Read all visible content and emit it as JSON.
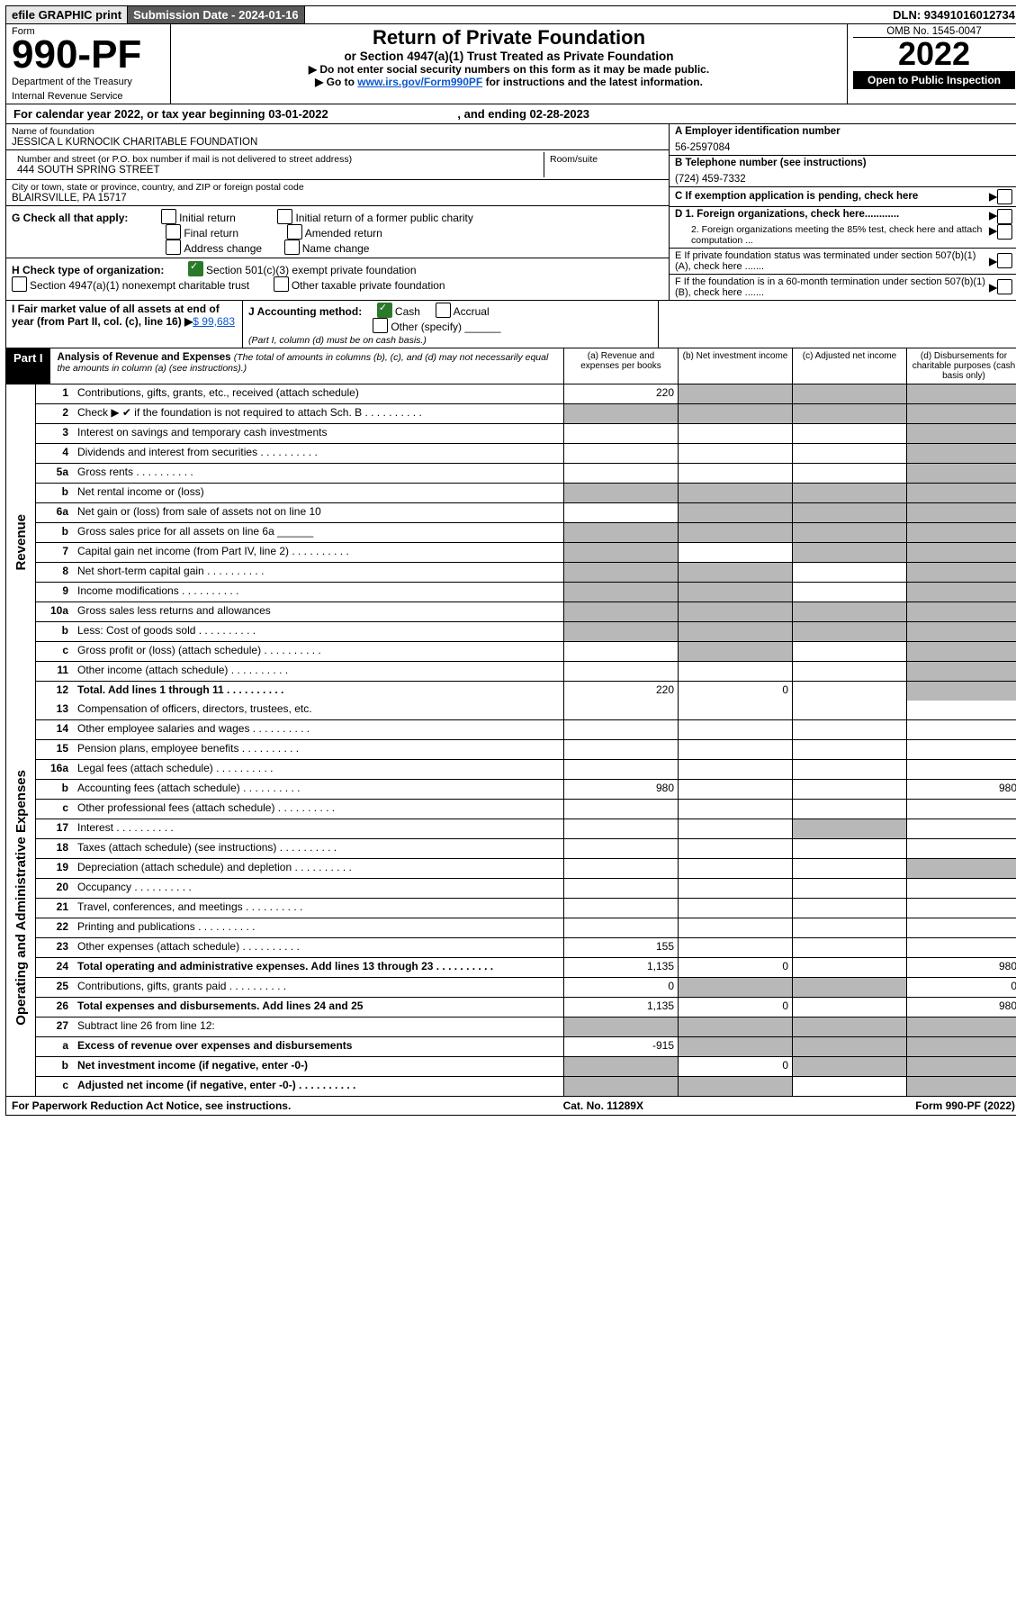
{
  "topbar": {
    "efile": "efile GRAPHIC print",
    "sub": "Submission Date - 2024-01-16",
    "dln": "DLN: 93491016012734"
  },
  "hdr": {
    "form": "Form",
    "num": "990-PF",
    "dept": "Department of the Treasury",
    "irs": "Internal Revenue Service",
    "title": "Return of Private Foundation",
    "sub": "or Section 4947(a)(1) Trust Treated as Private Foundation",
    "i1": "▶ Do not enter social security numbers on this form as it may be made public.",
    "i2": "▶ Go to ",
    "i2l": "www.irs.gov/Form990PF",
    "i2b": " for instructions and the latest information.",
    "omb": "OMB No. 1545-0047",
    "year": "2022",
    "open": "Open to Public Inspection"
  },
  "cal": {
    "pre": "For calendar year 2022, or tax year beginning ",
    "beg": "03-01-2022",
    "mid": ", and ending ",
    "end": "02-28-2023"
  },
  "org": {
    "namelbl": "Name of foundation",
    "name": "JESSICA L KURNOCIK CHARITABLE FOUNDATION",
    "addrlbl": "Number and street (or P.O. box number if mail is not delivered to street address)",
    "addr": "444 SOUTH SPRING STREET",
    "room": "Room/suite",
    "citylbl": "City or town, state or province, country, and ZIP or foreign postal code",
    "city": "BLAIRSVILLE, PA  15717",
    "Albl": "A Employer identification number",
    "A": "56-2597084",
    "Blbl": "B Telephone number (see instructions)",
    "B": "(724) 459-7332",
    "Clbl": "C If exemption application is pending, check here",
    "D1": "D 1. Foreign organizations, check here............",
    "D2": "2. Foreign organizations meeting the 85% test, check here and attach computation ...",
    "E": "E  If private foundation status was terminated under section 507(b)(1)(A), check here .......",
    "F": "F  If the foundation is in a 60-month termination under section 507(b)(1)(B), check here ......."
  },
  "G": {
    "lbl": "G Check all that apply:",
    "o1": "Initial return",
    "o2": "Final return",
    "o3": "Address change",
    "o4": "Initial return of a former public charity",
    "o5": "Amended return",
    "o6": "Name change"
  },
  "H": {
    "lbl": "H Check type of organization:",
    "o1": "Section 501(c)(3) exempt private foundation",
    "o2": "Section 4947(a)(1) nonexempt charitable trust",
    "o3": "Other taxable private foundation"
  },
  "I": {
    "lbl": "I Fair market value of all assets at end of year (from Part II, col. (c), line 16) ",
    "arrow": "▶",
    "amt": "$  99,683"
  },
  "J": {
    "lbl": "J Accounting method:",
    "o1": "Cash",
    "o2": "Accrual",
    "o3": "Other (specify)",
    "note": "(Part I, column (d) must be on cash basis.)"
  },
  "part1": {
    "bar": "Part I",
    "title": "Analysis of Revenue and Expenses",
    "note": "(The total of amounts in columns (b), (c), and (d) may not necessarily equal the amounts in column (a) (see instructions).)",
    "ha": "(a)   Revenue and expenses per books",
    "hb": "(b)   Net investment income",
    "hc": "(c)   Adjusted net income",
    "hd": "(d)  Disbursements for charitable purposes (cash basis only)"
  },
  "side": {
    "rev": "Revenue",
    "exp": "Operating and Administrative Expenses"
  },
  "rows": [
    {
      "n": "1",
      "d": "Contributions, gifts, grants, etc., received (attach schedule)",
      "a": "220",
      "sb": 1,
      "sc": 1,
      "sd": 1
    },
    {
      "n": "2",
      "d": "Check ▶  ✔  if the foundation is not required to attach Sch. B",
      "dots": 1,
      "sa": 1,
      "sb": 1,
      "sc": 1,
      "sd": 1
    },
    {
      "n": "3",
      "d": "Interest on savings and temporary cash investments",
      "sd": 1
    },
    {
      "n": "4",
      "d": "Dividends and interest from securities",
      "dots": 1,
      "sd": 1
    },
    {
      "n": "5a",
      "d": "Gross rents",
      "dots": 1,
      "sd": 1
    },
    {
      "n": "b",
      "d": "Net rental income or (loss)",
      "sa": 1,
      "sb": 1,
      "sc": 1,
      "sd": 1
    },
    {
      "n": "6a",
      "d": "Net gain or (loss) from sale of assets not on line 10",
      "sb": 1,
      "sc": 1,
      "sd": 1
    },
    {
      "n": "b",
      "d": "Gross sales price for all assets on line 6a ______",
      "sa": 1,
      "sb": 1,
      "sc": 1,
      "sd": 1
    },
    {
      "n": "7",
      "d": "Capital gain net income (from Part IV, line 2)",
      "dots": 1,
      "sa": 1,
      "sc": 1,
      "sd": 1
    },
    {
      "n": "8",
      "d": "Net short-term capital gain",
      "dots": 1,
      "sa": 1,
      "sb": 1,
      "sd": 1
    },
    {
      "n": "9",
      "d": "Income modifications",
      "dots": 1,
      "sa": 1,
      "sb": 1,
      "sd": 1
    },
    {
      "n": "10a",
      "d": "Gross sales less returns and allowances",
      "sa": 1,
      "sb": 1,
      "sc": 1,
      "sd": 1
    },
    {
      "n": "b",
      "d": "Less: Cost of goods sold",
      "dots": 1,
      "sa": 1,
      "sb": 1,
      "sc": 1,
      "sd": 1
    },
    {
      "n": "c",
      "d": "Gross profit or (loss) (attach schedule)",
      "dots": 1,
      "sb": 1,
      "sd": 1
    },
    {
      "n": "11",
      "d": "Other income (attach schedule)",
      "dots": 1,
      "sd": 1
    },
    {
      "n": "12",
      "d": "Total. Add lines 1 through 11",
      "dots": 1,
      "bold": 1,
      "a": "220",
      "b": "0",
      "sd": 1
    },
    {
      "n": "13",
      "d": "Compensation of officers, directors, trustees, etc."
    },
    {
      "n": "14",
      "d": "Other employee salaries and wages",
      "dots": 1
    },
    {
      "n": "15",
      "d": "Pension plans, employee benefits",
      "dots": 1
    },
    {
      "n": "16a",
      "d": "Legal fees (attach schedule)",
      "dots": 1
    },
    {
      "n": "b",
      "d": "Accounting fees (attach schedule)",
      "dots": 1,
      "a": "980",
      "dd": "980"
    },
    {
      "n": "c",
      "d": "Other professional fees (attach schedule)",
      "dots": 1
    },
    {
      "n": "17",
      "d": "Interest",
      "dots": 1,
      "sc": 1
    },
    {
      "n": "18",
      "d": "Taxes (attach schedule) (see instructions)",
      "dots": 1
    },
    {
      "n": "19",
      "d": "Depreciation (attach schedule) and depletion",
      "dots": 1,
      "sd": 1
    },
    {
      "n": "20",
      "d": "Occupancy",
      "dots": 1
    },
    {
      "n": "21",
      "d": "Travel, conferences, and meetings",
      "dots": 1
    },
    {
      "n": "22",
      "d": "Printing and publications",
      "dots": 1
    },
    {
      "n": "23",
      "d": "Other expenses (attach schedule)",
      "dots": 1,
      "a": "155"
    },
    {
      "n": "24",
      "d": "Total operating and administrative expenses. Add lines 13 through 23",
      "dots": 1,
      "bold": 1,
      "a": "1,135",
      "b": "0",
      "dd": "980"
    },
    {
      "n": "25",
      "d": "Contributions, gifts, grants paid",
      "dots": 1,
      "a": "0",
      "sb": 1,
      "sc": 1,
      "dd": "0"
    },
    {
      "n": "26",
      "d": "Total expenses and disbursements. Add lines 24 and 25",
      "bold": 1,
      "a": "1,135",
      "b": "0",
      "dd": "980"
    },
    {
      "n": "27",
      "d": "Subtract line 26 from line 12:",
      "sa": 1,
      "sb": 1,
      "sc": 1,
      "sd": 1
    },
    {
      "n": "a",
      "d": "Excess of revenue over expenses and disbursements",
      "bold": 1,
      "a": "-915",
      "sb": 1,
      "sc": 1,
      "sd": 1
    },
    {
      "n": "b",
      "d": "Net investment income (if negative, enter -0-)",
      "bold": 1,
      "sa": 1,
      "b": "0",
      "sc": 1,
      "sd": 1
    },
    {
      "n": "c",
      "d": "Adjusted net income (if negative, enter -0-)",
      "dots": 1,
      "bold": 1,
      "sa": 1,
      "sb": 1,
      "sd": 1
    }
  ],
  "footer": {
    "l": "For Paperwork Reduction Act Notice, see instructions.",
    "m": "Cat. No. 11289X",
    "r": "Form 990-PF (2022)"
  }
}
